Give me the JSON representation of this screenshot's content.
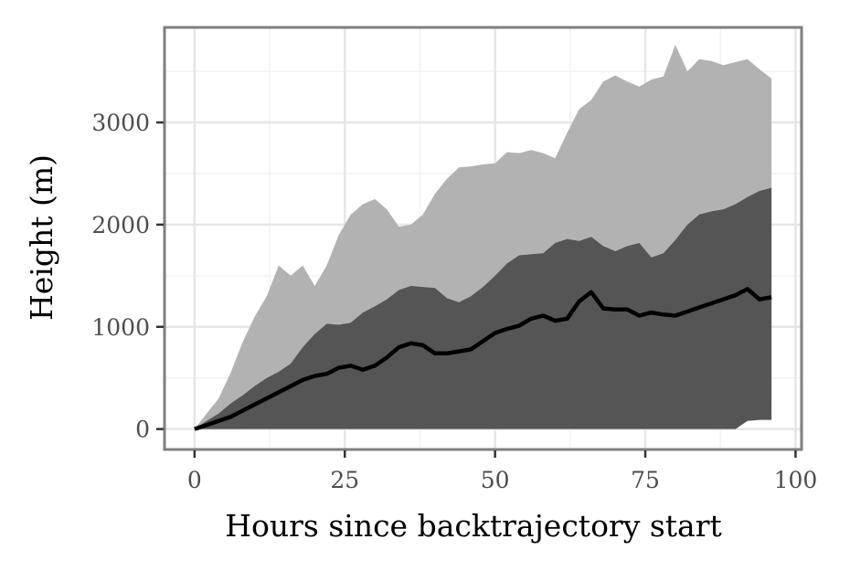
{
  "chart_data": {
    "type": "area",
    "title": "",
    "xlabel": "Hours since backtrajectory start",
    "ylabel": "Height (m)",
    "xlim": [
      -5,
      101
    ],
    "ylim": [
      -200,
      3930
    ],
    "x_ticks": [
      0,
      25,
      50,
      75,
      100
    ],
    "x_tick_labels": [
      "0",
      "25",
      "50",
      "75",
      "100"
    ],
    "y_ticks": [
      0,
      1000,
      2000,
      3000
    ],
    "y_tick_labels": [
      "0",
      "1000",
      "2000",
      "3000"
    ],
    "grid": true,
    "legend": "none",
    "colors": {
      "outer_band": "#b2b2b2",
      "inner_band": "#555555",
      "median_line": "#000000",
      "gridline": "#e6e6e6",
      "panel_border": "#7f7f7f"
    },
    "x": [
      0,
      2,
      4,
      6,
      8,
      10,
      12,
      14,
      16,
      18,
      20,
      22,
      24,
      26,
      28,
      30,
      32,
      34,
      36,
      38,
      40,
      42,
      44,
      46,
      48,
      50,
      52,
      54,
      56,
      58,
      60,
      62,
      64,
      66,
      68,
      70,
      72,
      74,
      76,
      78,
      80,
      82,
      84,
      86,
      88,
      90,
      92,
      94,
      96
    ],
    "series": [
      {
        "values_upper": [
          0,
          150,
          300,
          550,
          850,
          1100,
          1300,
          1600,
          1500,
          1600,
          1400,
          1600,
          1900,
          2100,
          2200,
          2250,
          2150,
          1980,
          2000,
          2100,
          2300,
          2450,
          2560,
          2570,
          2590,
          2600,
          2710,
          2700,
          2730,
          2700,
          2650,
          2900,
          3130,
          3220,
          3400,
          3460,
          3400,
          3350,
          3420,
          3450,
          3760,
          3500,
          3620,
          3600,
          3560,
          3590,
          3620,
          3520,
          3430
        ],
        "values_lower": [
          0,
          0,
          0,
          0,
          0,
          60,
          70,
          130,
          150,
          150,
          120,
          70,
          50,
          50,
          60,
          60,
          60,
          60,
          30,
          30,
          30,
          10,
          0,
          10,
          30,
          40,
          60,
          80,
          80,
          80,
          50,
          20,
          20,
          30,
          50,
          80,
          100,
          110,
          100,
          80,
          90,
          100,
          120,
          140,
          160,
          180,
          230,
          280,
          280
        ]
      },
      {
        "values_upper": [
          0,
          80,
          150,
          250,
          330,
          420,
          500,
          560,
          640,
          800,
          930,
          1030,
          1020,
          1040,
          1140,
          1200,
          1270,
          1360,
          1400,
          1390,
          1380,
          1280,
          1240,
          1300,
          1390,
          1500,
          1620,
          1700,
          1710,
          1720,
          1820,
          1860,
          1840,
          1880,
          1790,
          1740,
          1790,
          1820,
          1680,
          1720,
          1850,
          2000,
          2100,
          2130,
          2150,
          2200,
          2270,
          2330,
          2360
        ],
        "values_lower": [
          0,
          0,
          0,
          0,
          0,
          0,
          0,
          0,
          0,
          0,
          0,
          0,
          0,
          0,
          0,
          0,
          0,
          0,
          0,
          0,
          0,
          0,
          0,
          0,
          0,
          0,
          0,
          0,
          0,
          0,
          0,
          0,
          0,
          0,
          0,
          0,
          0,
          0,
          0,
          0,
          0,
          0,
          0,
          0,
          0,
          0,
          80,
          90,
          90
        ]
      },
      {
        "values": [
          0,
          40,
          80,
          120,
          180,
          240,
          300,
          360,
          420,
          480,
          520,
          540,
          600,
          620,
          580,
          620,
          700,
          800,
          840,
          820,
          740,
          740,
          760,
          780,
          860,
          940,
          980,
          1010,
          1080,
          1110,
          1060,
          1080,
          1250,
          1340,
          1180,
          1170,
          1170,
          1110,
          1140,
          1120,
          1110,
          1150,
          1190,
          1230,
          1270,
          1310,
          1370,
          1270,
          1290
        ]
      }
    ]
  }
}
